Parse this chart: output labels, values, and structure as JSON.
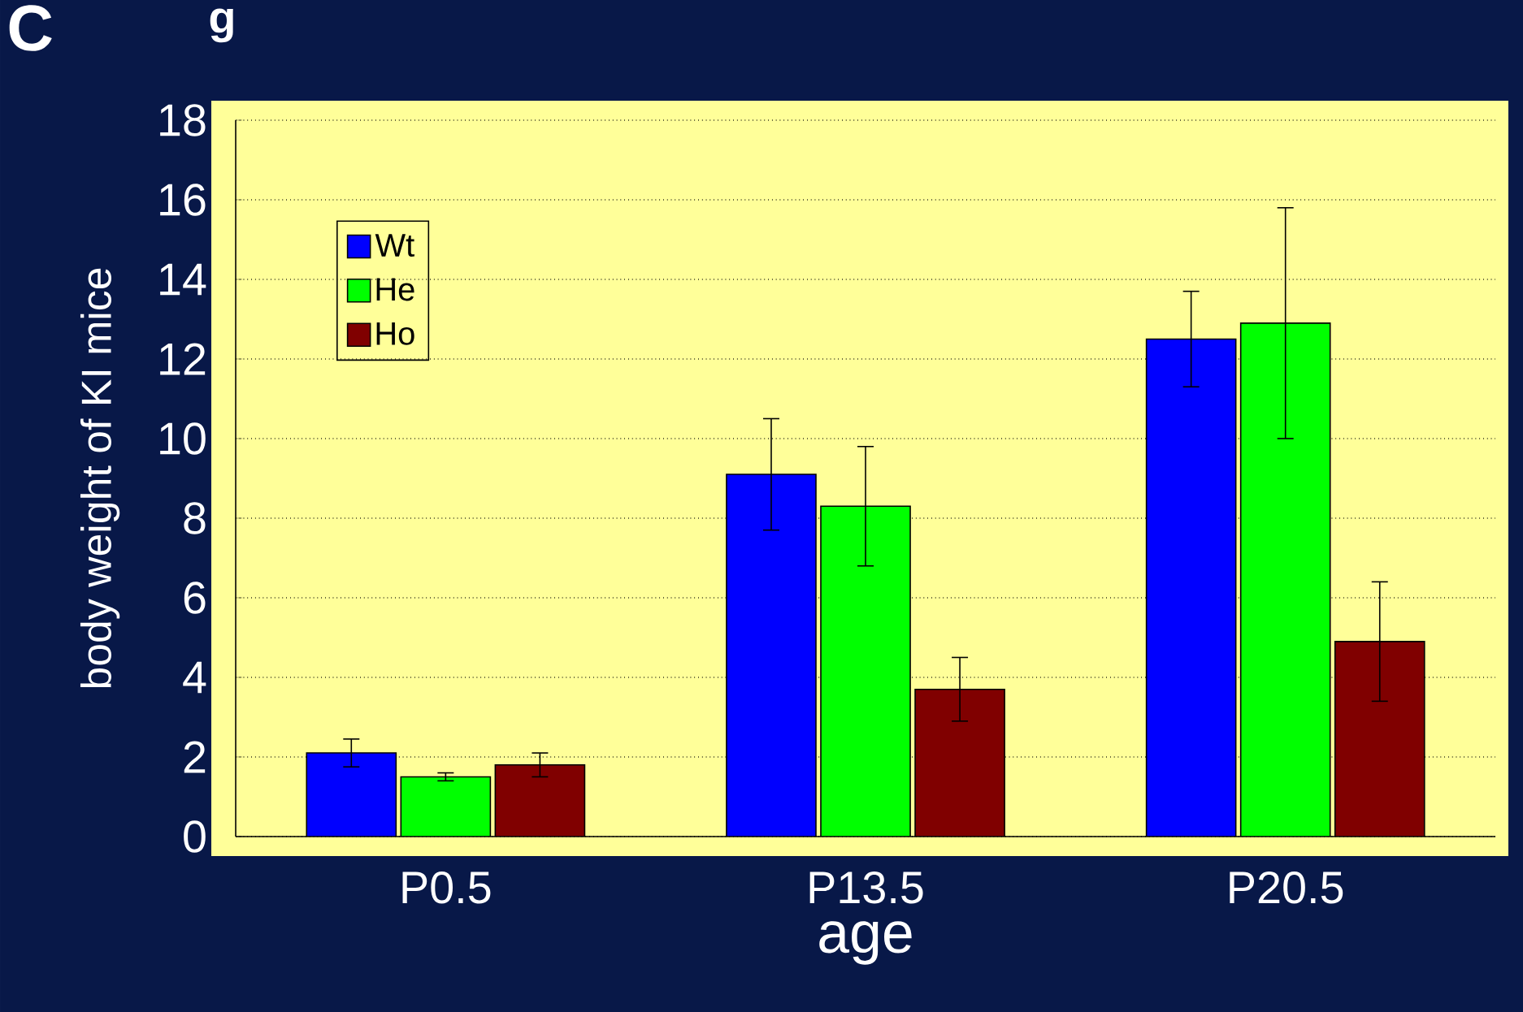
{
  "chart_data": {
    "type": "bar",
    "xlabel": "age",
    "ylabel": "body weight of KI mice",
    "annotations": [
      "C",
      "g"
    ],
    "categories": [
      "P0.5",
      "P13.5",
      "P20.5"
    ],
    "series": [
      {
        "name": "Wt",
        "color": "#0000ff",
        "values": [
          2.1,
          9.1,
          12.5
        ],
        "errors": [
          0.35,
          1.4,
          1.2
        ]
      },
      {
        "name": "He",
        "color": "#00ff00",
        "values": [
          1.5,
          8.3,
          12.9
        ],
        "errors": [
          0.1,
          1.5,
          2.9
        ]
      },
      {
        "name": "Ho",
        "color": "#800000",
        "values": [
          1.8,
          3.7,
          4.9
        ],
        "errors": [
          0.3,
          0.8,
          1.5
        ]
      }
    ],
    "ylim": [
      0,
      18
    ],
    "yticks": [
      0,
      2,
      4,
      6,
      8,
      10,
      12,
      14,
      16,
      18
    ],
    "grid": "y",
    "legend": "top left"
  }
}
